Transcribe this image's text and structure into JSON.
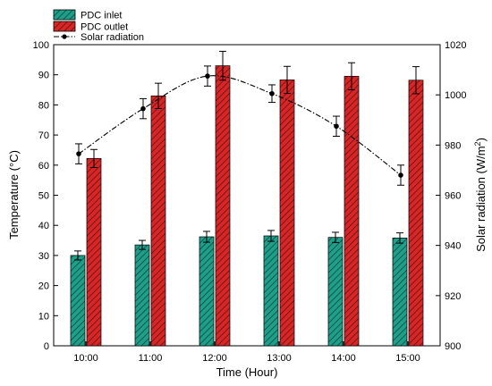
{
  "chart_data": {
    "type": "bar",
    "categories": [
      "10:00",
      "11:00",
      "12:00",
      "13:00",
      "14:00",
      "15:00"
    ],
    "xlabel": "Time (Hour)",
    "ylabel_left": "Temperature (°C)",
    "ylabel_right_main": "Solar radiation (W/m",
    "ylabel_right_sup": "2",
    "ylabel_right_close": ")",
    "ylim_left": [
      0,
      100
    ],
    "yticks_left": [
      0,
      10,
      20,
      30,
      40,
      50,
      60,
      70,
      80,
      90,
      100
    ],
    "ylim_right": [
      900,
      1020
    ],
    "yticks_right": [
      900,
      920,
      940,
      960,
      980,
      1000,
      1020
    ],
    "legend_position": "top-left",
    "series": [
      {
        "name": "PDC inlet",
        "kind": "bar",
        "axis": "left",
        "color": "#1f9e89",
        "hatch_color": "#0b3b33",
        "values": [
          30,
          33.5,
          36.2,
          36.5,
          36,
          35.8
        ],
        "errors": [
          1.5,
          1.5,
          1.8,
          1.8,
          1.7,
          1.7
        ]
      },
      {
        "name": "PDC outlet",
        "kind": "bar",
        "axis": "left",
        "color": "#d62728",
        "hatch_color": "#5a0a0a",
        "values": [
          62.2,
          83,
          93,
          88.3,
          89.5,
          88.2
        ],
        "errors": [
          3,
          4.2,
          4.8,
          4.5,
          4.5,
          4.5
        ]
      },
      {
        "name": "Solar radiation",
        "kind": "line",
        "axis": "right",
        "color": "#000000",
        "values": [
          976.5,
          994.5,
          1007.5,
          1000.5,
          987.5,
          968
        ],
        "errors": [
          4,
          4,
          4,
          3.5,
          4,
          4
        ]
      }
    ]
  }
}
